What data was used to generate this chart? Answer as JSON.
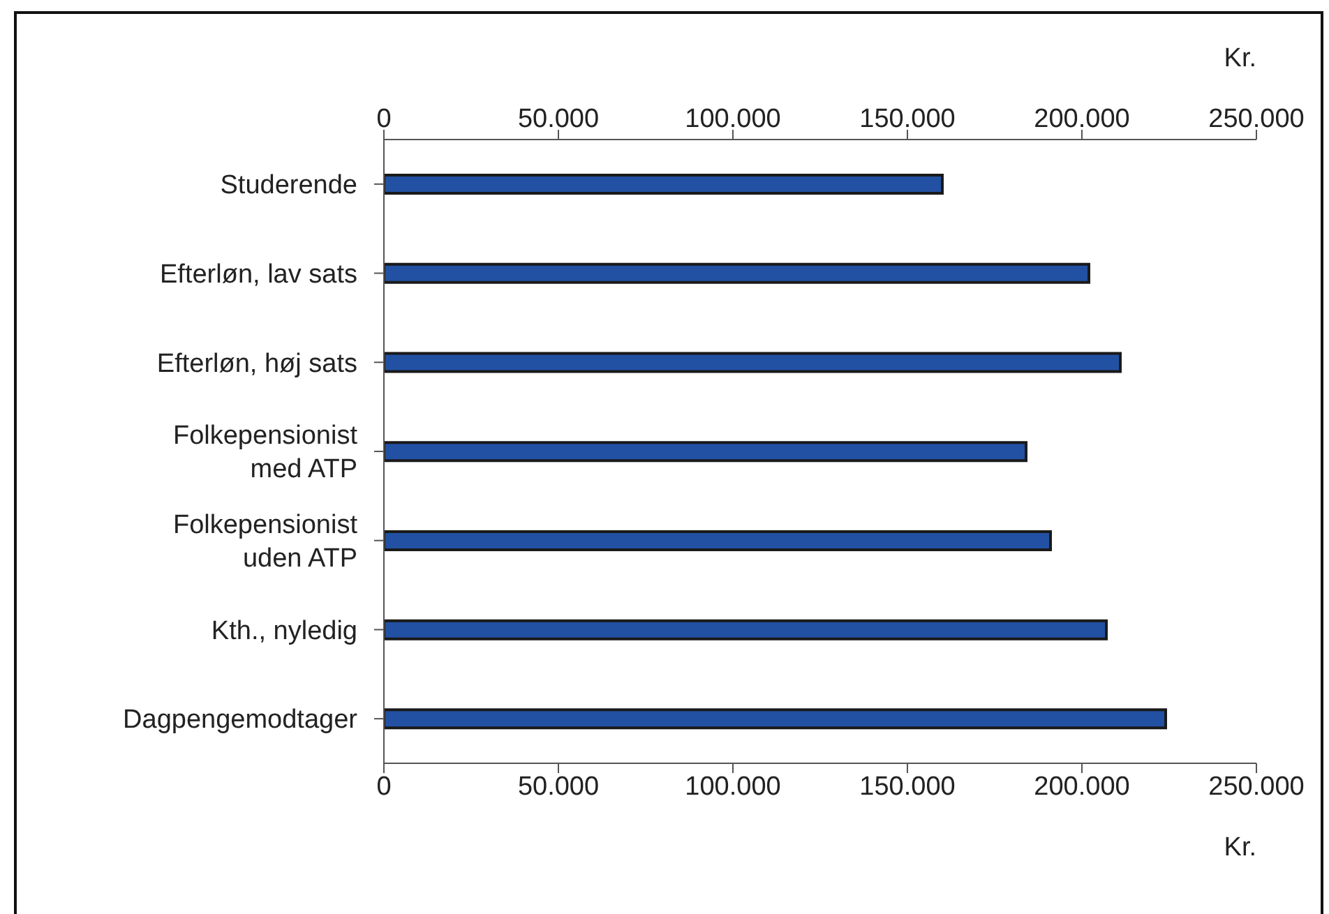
{
  "chart_data": {
    "type": "bar",
    "orientation": "horizontal",
    "categories": [
      "Studerende",
      "Efterløn, lav sats",
      "Efterløn, høj sats",
      "Folkepensionist med ATP",
      "Folkepensionist uden ATP",
      "Kth., nyledig",
      "Dagpengemodtager"
    ],
    "values": [
      160000,
      202000,
      211000,
      184000,
      191000,
      207000,
      224000
    ],
    "color": "#2251a3",
    "xlim": [
      0,
      250000
    ],
    "xticks": [
      {
        "value": 0,
        "label": "0"
      },
      {
        "value": 50000,
        "label": "50.000"
      },
      {
        "value": 100000,
        "label": "100.000"
      },
      {
        "value": 150000,
        "label": "150.000"
      },
      {
        "value": 200000,
        "label": "200.000"
      },
      {
        "value": 250000,
        "label": "250.000"
      }
    ],
    "x2lim": [
      0,
      250000
    ],
    "x2ticks": [
      {
        "value": 0,
        "label": "0"
      },
      {
        "value": 50000,
        "label": "50.000"
      },
      {
        "value": 100000,
        "label": "100.000"
      },
      {
        "value": 150000,
        "label": "150.000"
      },
      {
        "value": 200000,
        "label": "200.000"
      },
      {
        "value": 250000,
        "label": "250.000"
      }
    ],
    "xlabel": "Kr.",
    "x2label": "Kr.",
    "grid": false,
    "legend": false
  }
}
